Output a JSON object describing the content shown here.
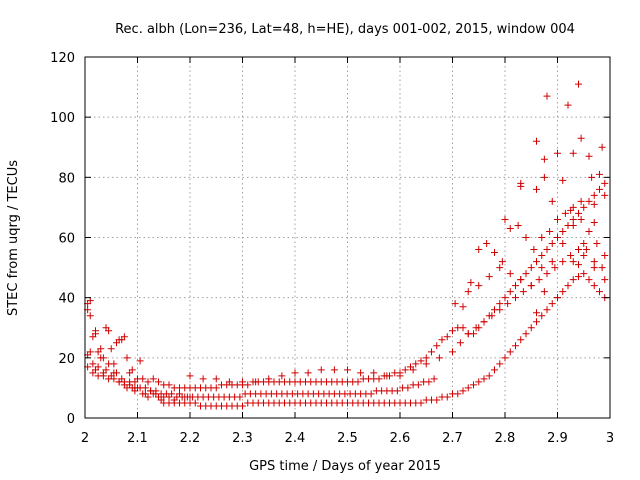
{
  "chart_data": {
    "type": "scatter",
    "title": "Rec. albh (Lon=236, Lat=48, h=HE), days 001-002, 2015, window 004",
    "xlabel": "GPS time / Days of year 2015",
    "ylabel": "STEC from uqrg / TECUs",
    "xlim": [
      2,
      3
    ],
    "ylim": [
      0,
      120
    ],
    "xticks": [
      "2",
      "2.1",
      "2.2",
      "2.3",
      "2.4",
      "2.5",
      "2.6",
      "2.7",
      "2.8",
      "2.9",
      "3"
    ],
    "yticks": [
      "0",
      "20",
      "40",
      "60",
      "80",
      "100",
      "120"
    ],
    "grid": true,
    "marker": "+",
    "series_color": "#d00000",
    "series": [
      {
        "name": "STEC",
        "x": [
          2.005,
          2.005,
          2.01,
          2.01,
          2.015,
          2.02,
          2.02,
          2.025,
          2.03,
          2.035,
          2.04,
          2.045,
          2.05,
          2.055,
          2.06,
          2.065,
          2.07,
          2.075,
          2.08,
          2.085,
          2.09,
          2.095,
          2.005,
          2.01,
          2.015,
          2.02,
          2.025,
          2.03,
          2.035,
          2.04,
          2.045,
          2.05,
          2.055,
          2.06,
          2.065,
          2.07,
          2.075,
          2.08,
          2.085,
          2.09,
          2.095,
          2.1,
          2.105,
          2.11,
          2.115,
          2.12,
          2.125,
          2.13,
          2.135,
          2.14,
          2.145,
          2.15,
          2.16,
          2.17,
          2.18,
          2.19,
          2.2,
          2.005,
          2.015,
          2.025,
          2.035,
          2.045,
          2.055,
          2.065,
          2.075,
          2.085,
          2.095,
          2.105,
          2.115,
          2.125,
          2.135,
          2.145,
          2.155,
          2.165,
          2.175,
          2.185,
          2.195,
          2.205,
          2.215,
          2.225,
          2.235,
          2.245,
          2.255,
          2.265,
          2.275,
          2.285,
          2.295,
          2.305,
          2.315,
          2.325,
          2.335,
          2.345,
          2.355,
          2.365,
          2.375,
          2.385,
          2.395,
          2.405,
          2.415,
          2.425,
          2.435,
          2.445,
          2.455,
          2.465,
          2.475,
          2.485,
          2.495,
          2.505,
          2.515,
          2.525,
          2.535,
          2.545,
          2.555,
          2.565,
          2.575,
          2.585,
          2.595,
          2.605,
          2.615,
          2.625,
          2.635,
          2.645,
          2.655,
          2.665,
          2.1,
          2.11,
          2.12,
          2.13,
          2.14,
          2.15,
          2.16,
          2.17,
          2.18,
          2.19,
          2.2,
          2.21,
          2.22,
          2.23,
          2.24,
          2.25,
          2.26,
          2.27,
          2.28,
          2.29,
          2.3,
          2.31,
          2.32,
          2.33,
          2.34,
          2.35,
          2.36,
          2.37,
          2.38,
          2.39,
          2.4,
          2.41,
          2.42,
          2.43,
          2.44,
          2.45,
          2.46,
          2.47,
          2.48,
          2.49,
          2.5,
          2.51,
          2.52,
          2.53,
          2.54,
          2.55,
          2.56,
          2.57,
          2.58,
          2.59,
          2.6,
          2.61,
          2.62,
          2.63,
          2.64,
          2.65,
          2.66,
          2.67,
          2.68,
          2.69,
          2.7,
          2.71,
          2.72,
          2.73,
          2.74,
          2.75,
          2.76,
          2.77,
          2.78,
          2.79,
          2.8,
          2.81,
          2.82,
          2.83,
          2.84,
          2.85,
          2.86,
          2.87,
          2.88,
          2.89,
          2.9,
          2.91,
          2.92,
          2.93,
          2.94,
          2.95,
          2.96,
          2.97,
          2.98,
          2.99,
          2.15,
          2.16,
          2.17,
          2.18,
          2.19,
          2.2,
          2.21,
          2.22,
          2.23,
          2.24,
          2.25,
          2.26,
          2.27,
          2.28,
          2.29,
          2.3,
          2.31,
          2.32,
          2.33,
          2.34,
          2.35,
          2.36,
          2.37,
          2.38,
          2.39,
          2.4,
          2.41,
          2.42,
          2.43,
          2.44,
          2.45,
          2.46,
          2.47,
          2.48,
          2.49,
          2.5,
          2.51,
          2.52,
          2.53,
          2.54,
          2.55,
          2.56,
          2.57,
          2.58,
          2.59,
          2.6,
          2.61,
          2.62,
          2.63,
          2.64,
          2.65,
          2.66,
          2.67,
          2.68,
          2.69,
          2.7,
          2.71,
          2.72,
          2.73,
          2.74,
          2.75,
          2.76,
          2.77,
          2.78,
          2.79,
          2.8,
          2.81,
          2.82,
          2.83,
          2.84,
          2.85,
          2.86,
          2.87,
          2.88,
          2.89,
          2.9,
          2.91,
          2.92,
          2.93,
          2.94,
          2.95,
          2.96,
          2.97,
          2.98,
          2.99,
          2.2,
          2.225,
          2.25,
          2.275,
          2.3,
          2.325,
          2.35,
          2.375,
          2.4,
          2.425,
          2.45,
          2.475,
          2.5,
          2.525,
          2.55,
          2.575,
          2.6,
          2.625,
          2.65,
          2.675,
          2.7,
          2.715,
          2.73,
          2.745,
          2.76,
          2.775,
          2.79,
          2.805,
          2.82,
          2.835,
          2.85,
          2.865,
          2.88,
          2.895,
          2.91,
          2.925,
          2.94,
          2.955,
          2.97,
          2.985,
          2.705,
          2.72,
          2.735,
          2.75,
          2.765,
          2.78,
          2.795,
          2.81,
          2.825,
          2.84,
          2.855,
          2.87,
          2.885,
          2.9,
          2.915,
          2.93,
          2.945,
          2.96,
          2.975,
          2.99,
          2.73,
          2.75,
          2.77,
          2.79,
          2.81,
          2.83,
          2.85,
          2.87,
          2.89,
          2.91,
          2.93,
          2.95,
          2.97,
          2.99,
          2.8,
          2.83,
          2.86,
          2.88,
          2.9,
          2.92,
          2.94,
          2.96,
          2.98,
          2.83,
          2.86,
          2.875,
          2.89,
          2.91,
          2.93,
          2.945,
          2.965,
          2.985,
          2.86,
          2.875,
          2.9,
          2.93,
          2.94,
          2.95,
          2.97,
          2.99,
          2.875,
          2.925,
          2.945,
          2.97
        ],
        "y": [
          38,
          36,
          34,
          39,
          27,
          29,
          28,
          22,
          23,
          20,
          30,
          29,
          23,
          18,
          25,
          26,
          26,
          27,
          20,
          15,
          16,
          12,
          21,
          22,
          18,
          16,
          17,
          20,
          15,
          16,
          18,
          14,
          15,
          15,
          12,
          13,
          11,
          10,
          12,
          10,
          9,
          10,
          19,
          8,
          8,
          7,
          9,
          8,
          8,
          7,
          6,
          7,
          7,
          6,
          8,
          7,
          7,
          17,
          15,
          14,
          14,
          13,
          13,
          12,
          12,
          11,
          10,
          10,
          10,
          9,
          9,
          8,
          8,
          8,
          7,
          7,
          7,
          7,
          7,
          7,
          7,
          7,
          7,
          7,
          7,
          7,
          7,
          8,
          8,
          8,
          8,
          8,
          8,
          8,
          8,
          8,
          8,
          8,
          8,
          8,
          8,
          8,
          8,
          8,
          8,
          8,
          8,
          8,
          8,
          8,
          8,
          8,
          9,
          9,
          9,
          9,
          9,
          10,
          10,
          11,
          11,
          12,
          12,
          13,
          13,
          13,
          12,
          13,
          12,
          11,
          11,
          10,
          10,
          10,
          10,
          10,
          10,
          10,
          10,
          10,
          11,
          11,
          11,
          11,
          11,
          11,
          12,
          12,
          12,
          12,
          12,
          12,
          12,
          12,
          12,
          12,
          12,
          12,
          12,
          12,
          12,
          12,
          12,
          12,
          12,
          12,
          12,
          13,
          13,
          13,
          13,
          14,
          14,
          15,
          15,
          16,
          17,
          18,
          19,
          20,
          22,
          24,
          26,
          27,
          29,
          30,
          30,
          28,
          28,
          30,
          32,
          34,
          36,
          38,
          40,
          42,
          44,
          46,
          48,
          50,
          52,
          54,
          56,
          58,
          60,
          62,
          64,
          66,
          68,
          70,
          72,
          74,
          76,
          78,
          5,
          5,
          5,
          5,
          5,
          5,
          5,
          4,
          4,
          4,
          4,
          4,
          4,
          4,
          4,
          4,
          5,
          5,
          5,
          5,
          5,
          5,
          5,
          5,
          5,
          5,
          5,
          5,
          5,
          5,
          5,
          5,
          5,
          5,
          5,
          5,
          5,
          5,
          5,
          5,
          5,
          5,
          5,
          5,
          5,
          5,
          5,
          5,
          5,
          5,
          6,
          6,
          6,
          7,
          7,
          8,
          8,
          9,
          10,
          11,
          12,
          13,
          14,
          16,
          18,
          20,
          22,
          24,
          26,
          28,
          30,
          32,
          34,
          36,
          38,
          40,
          42,
          44,
          46,
          47,
          48,
          46,
          44,
          42,
          40,
          14,
          13,
          13,
          12,
          12,
          12,
          13,
          14,
          15,
          15,
          16,
          16,
          16,
          15,
          15,
          14,
          14,
          16,
          18,
          20,
          22,
          25,
          28,
          30,
          32,
          34,
          36,
          38,
          40,
          42,
          44,
          46,
          48,
          50,
          52,
          54,
          56,
          56,
          52,
          50,
          38,
          37,
          45,
          56,
          58,
          55,
          52,
          63,
          64,
          60,
          56,
          60,
          62,
          66,
          68,
          70,
          66,
          62,
          58,
          54,
          42,
          44,
          47,
          50,
          48,
          46,
          44,
          50,
          52,
          58,
          64,
          54,
          50,
          46,
          66,
          78,
          92,
          107,
          88,
          104,
          111,
          87,
          81,
          77,
          76,
          86,
          72,
          79,
          88,
          93,
          80,
          90,
          35,
          42,
          40,
          52,
          51,
          58,
          71,
          74,
          80,
          69,
          72,
          65
        ]
      }
    ]
  }
}
